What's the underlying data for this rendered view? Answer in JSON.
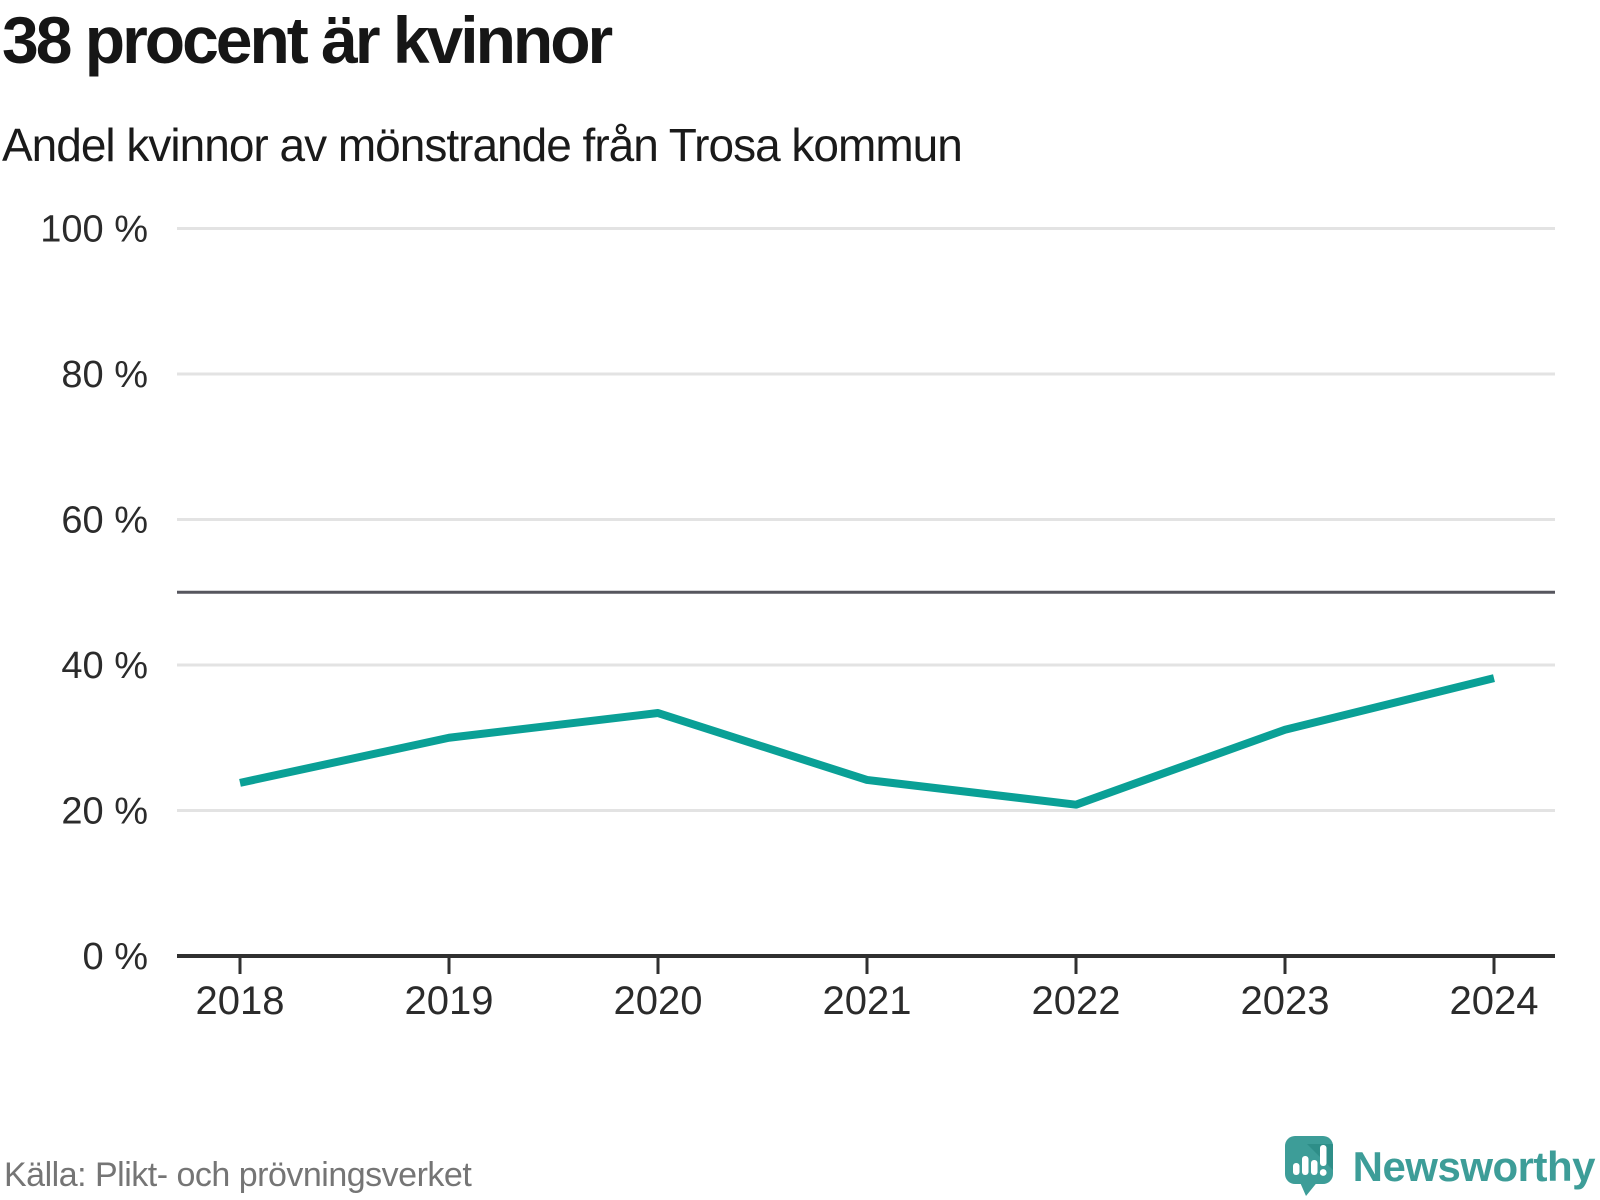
{
  "header": {
    "title": "38 procent är kvinnor",
    "subtitle": "Andel kvinnor av mönstrande från Trosa kommun"
  },
  "chart_data": {
    "type": "line",
    "title": "38 procent är kvinnor",
    "subtitle": "Andel kvinnor av mönstrande från Trosa kommun",
    "x": [
      2018,
      2019,
      2020,
      2021,
      2022,
      2023,
      2024
    ],
    "x_tick_labels": [
      "2018",
      "2019",
      "2020",
      "2021",
      "2022",
      "2023",
      "2024"
    ],
    "series": [
      {
        "name": "Andel kvinnor av mönstrande",
        "values": [
          23.8,
          30.0,
          33.4,
          24.2,
          20.8,
          31.1,
          38.2
        ]
      }
    ],
    "unit": "%",
    "ylim": [
      0,
      100
    ],
    "y_ticks": [
      0,
      20,
      40,
      60,
      80,
      100
    ],
    "y_tick_labels": [
      "0 %",
      "20 %",
      "40 %",
      "60 %",
      "80 %",
      "100 %"
    ],
    "reference_line": 50,
    "grid": "horizontal",
    "legend": "none",
    "line_color": "#0aa096"
  },
  "footer": {
    "source": "Källa: Plikt- och prövningsverket",
    "logo_text": "Newsworthy"
  },
  "icons": {
    "brand_icon": "speech-bubble-bar-chart-exclamation-icon"
  },
  "colors": {
    "line": "#0aa096",
    "grid": "#e3e3e3",
    "reference": "#56565e",
    "axis": "#303030",
    "text": "#2b2b2b",
    "muted": "#757575",
    "logo": "#3d9d98",
    "logo_dark": "#2e8e88"
  }
}
